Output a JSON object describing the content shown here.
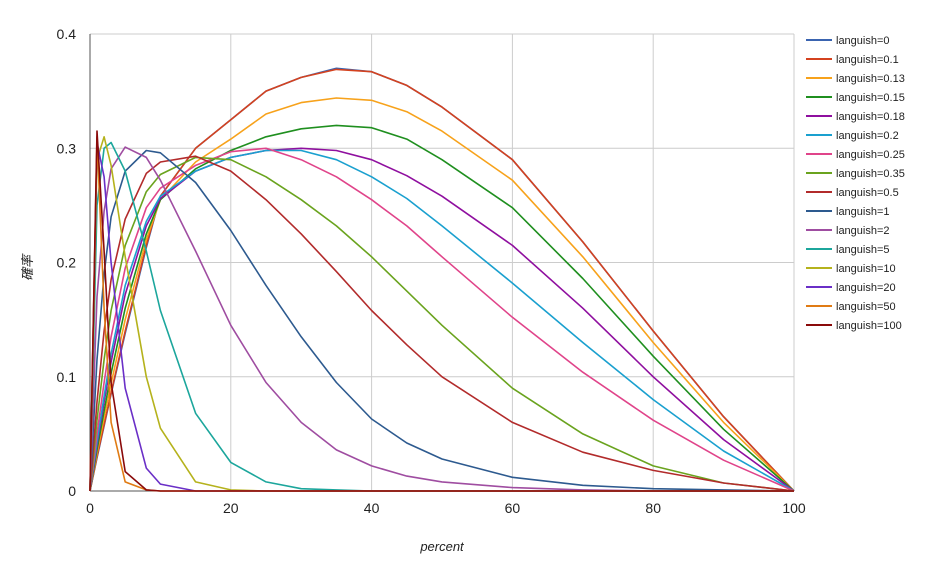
{
  "chart_data": {
    "type": "line",
    "title": "",
    "xlabel": "percent",
    "ylabel": "確率",
    "xlim": [
      0,
      100
    ],
    "ylim": [
      0,
      0.4
    ],
    "xticks": [
      "0",
      "20",
      "40",
      "60",
      "80",
      "100"
    ],
    "yticks": [
      "0",
      "0.1",
      "0.2",
      "0.3",
      "0.4"
    ],
    "grid": true,
    "legend_position": "right",
    "x": [
      0,
      1,
      2,
      3,
      5,
      8,
      10,
      15,
      20,
      25,
      30,
      35,
      40,
      45,
      50,
      60,
      70,
      80,
      90,
      100
    ],
    "series": [
      {
        "name": "languish=0",
        "color": "#3a64b0",
        "values": [
          0,
          0.029,
          0.057,
          0.085,
          0.138,
          0.213,
          0.258,
          0.3,
          0.325,
          0.35,
          0.362,
          0.37,
          0.367,
          0.355,
          0.336,
          0.29,
          0.218,
          0.14,
          0.065,
          0
        ]
      },
      {
        "name": "languish=0.1",
        "color": "#d4421f",
        "values": [
          0,
          0.03,
          0.058,
          0.086,
          0.14,
          0.215,
          0.258,
          0.3,
          0.325,
          0.35,
          0.362,
          0.369,
          0.367,
          0.355,
          0.336,
          0.29,
          0.218,
          0.14,
          0.065,
          0
        ]
      },
      {
        "name": "languish=0.13",
        "color": "#f7a21b",
        "values": [
          0,
          0.033,
          0.064,
          0.094,
          0.15,
          0.22,
          0.255,
          0.288,
          0.308,
          0.33,
          0.34,
          0.344,
          0.342,
          0.332,
          0.315,
          0.272,
          0.205,
          0.13,
          0.06,
          0
        ]
      },
      {
        "name": "languish=0.15",
        "color": "#1f8f1f",
        "values": [
          0,
          0.036,
          0.07,
          0.103,
          0.16,
          0.225,
          0.255,
          0.282,
          0.298,
          0.31,
          0.317,
          0.32,
          0.318,
          0.308,
          0.29,
          0.248,
          0.186,
          0.118,
          0.054,
          0
        ]
      },
      {
        "name": "languish=0.18",
        "color": "#8f0f9f",
        "values": [
          0,
          0.04,
          0.078,
          0.113,
          0.172,
          0.232,
          0.256,
          0.28,
          0.292,
          0.298,
          0.3,
          0.298,
          0.29,
          0.276,
          0.258,
          0.215,
          0.16,
          0.1,
          0.045,
          0
        ]
      },
      {
        "name": "languish=0.2",
        "color": "#1aa0cf",
        "values": [
          0,
          0.043,
          0.083,
          0.12,
          0.18,
          0.236,
          0.258,
          0.28,
          0.292,
          0.298,
          0.298,
          0.29,
          0.275,
          0.256,
          0.232,
          0.182,
          0.13,
          0.08,
          0.035,
          0
        ]
      },
      {
        "name": "languish=0.25",
        "color": "#e0448a",
        "values": [
          0,
          0.05,
          0.095,
          0.135,
          0.195,
          0.248,
          0.265,
          0.285,
          0.297,
          0.3,
          0.29,
          0.275,
          0.255,
          0.232,
          0.205,
          0.152,
          0.104,
          0.062,
          0.027,
          0
        ]
      },
      {
        "name": "languish=0.35",
        "color": "#6aa31e",
        "values": [
          0,
          0.062,
          0.115,
          0.158,
          0.215,
          0.262,
          0.277,
          0.292,
          0.29,
          0.275,
          0.255,
          0.232,
          0.205,
          0.175,
          0.145,
          0.09,
          0.05,
          0.022,
          0.007,
          0
        ]
      },
      {
        "name": "languish=0.5",
        "color": "#b22b2b",
        "values": [
          0,
          0.078,
          0.14,
          0.185,
          0.238,
          0.278,
          0.288,
          0.293,
          0.28,
          0.255,
          0.225,
          0.192,
          0.158,
          0.128,
          0.1,
          0.06,
          0.034,
          0.018,
          0.007,
          0
        ]
      },
      {
        "name": "languish=1",
        "color": "#2d5a8f",
        "values": [
          0,
          0.115,
          0.19,
          0.24,
          0.28,
          0.298,
          0.296,
          0.27,
          0.228,
          0.18,
          0.135,
          0.095,
          0.063,
          0.042,
          0.028,
          0.012,
          0.005,
          0.002,
          0.001,
          0
        ]
      },
      {
        "name": "languish=2",
        "color": "#9f4da1",
        "values": [
          0,
          0.17,
          0.245,
          0.282,
          0.301,
          0.292,
          0.272,
          0.21,
          0.145,
          0.095,
          0.06,
          0.036,
          0.022,
          0.013,
          0.008,
          0.003,
          0.001,
          0,
          0,
          0
        ]
      },
      {
        "name": "languish=5",
        "color": "#1ca69c",
        "values": [
          0,
          0.25,
          0.3,
          0.305,
          0.28,
          0.21,
          0.158,
          0.068,
          0.025,
          0.008,
          0.002,
          0.001,
          0,
          0,
          0,
          0,
          0,
          0,
          0,
          0
        ]
      },
      {
        "name": "languish=10",
        "color": "#b5b21c",
        "values": [
          0,
          0.29,
          0.31,
          0.285,
          0.205,
          0.1,
          0.055,
          0.008,
          0.001,
          0,
          0,
          0,
          0,
          0,
          0,
          0,
          0,
          0,
          0,
          0
        ]
      },
      {
        "name": "languish=20",
        "color": "#6a2fc7",
        "values": [
          0,
          0.305,
          0.275,
          0.2,
          0.09,
          0.02,
          0.006,
          0,
          0,
          0,
          0,
          0,
          0,
          0,
          0,
          0,
          0,
          0,
          0,
          0
        ]
      },
      {
        "name": "languish=50",
        "color": "#e07b14",
        "values": [
          0,
          0.31,
          0.16,
          0.06,
          0.008,
          0.001,
          0,
          0,
          0,
          0,
          0,
          0,
          0,
          0,
          0,
          0,
          0,
          0,
          0,
          0
        ]
      },
      {
        "name": "languish=100",
        "color": "#8a0a0a",
        "values": [
          0,
          0.315,
          0.21,
          0.095,
          0.017,
          0.001,
          0,
          0,
          0,
          0,
          0,
          0,
          0,
          0,
          0,
          0,
          0,
          0,
          0,
          0
        ]
      }
    ]
  }
}
